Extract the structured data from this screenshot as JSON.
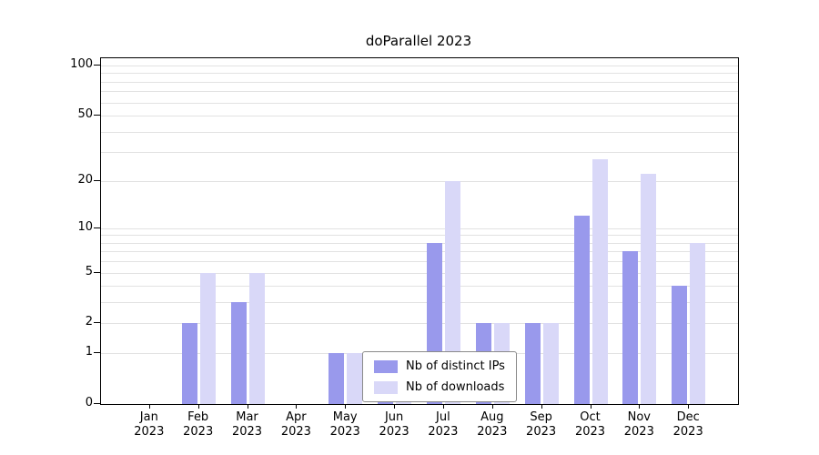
{
  "chart_data": {
    "type": "bar",
    "title": "doParallel 2023",
    "categories": [
      {
        "month": "Jan",
        "year": "2023"
      },
      {
        "month": "Feb",
        "year": "2023"
      },
      {
        "month": "Mar",
        "year": "2023"
      },
      {
        "month": "Apr",
        "year": "2023"
      },
      {
        "month": "May",
        "year": "2023"
      },
      {
        "month": "Jun",
        "year": "2023"
      },
      {
        "month": "Jul",
        "year": "2023"
      },
      {
        "month": "Aug",
        "year": "2023"
      },
      {
        "month": "Sep",
        "year": "2023"
      },
      {
        "month": "Oct",
        "year": "2023"
      },
      {
        "month": "Nov",
        "year": "2023"
      },
      {
        "month": "Dec",
        "year": "2023"
      }
    ],
    "series": [
      {
        "name": "Nb of distinct IPs",
        "color": "#9999ec",
        "values": [
          0,
          2,
          3,
          0,
          1,
          1,
          8,
          2,
          2,
          12,
          7,
          4
        ]
      },
      {
        "name": "Nb of downloads",
        "color": "#d9d8f8",
        "values": [
          0,
          5,
          5,
          0,
          1,
          1,
          20,
          2,
          2,
          27,
          22,
          8
        ]
      }
    ],
    "y_scale": "log1p",
    "ylim": [
      0,
      100
    ],
    "y_ticks": [
      0,
      1,
      2,
      5,
      10,
      20,
      50,
      100
    ],
    "y_gridlines": [
      1,
      2,
      3,
      4,
      5,
      6,
      7,
      8,
      9,
      10,
      20,
      30,
      40,
      50,
      60,
      70,
      80,
      90,
      100
    ],
    "grid": true,
    "legend_position": "bottom-center"
  }
}
